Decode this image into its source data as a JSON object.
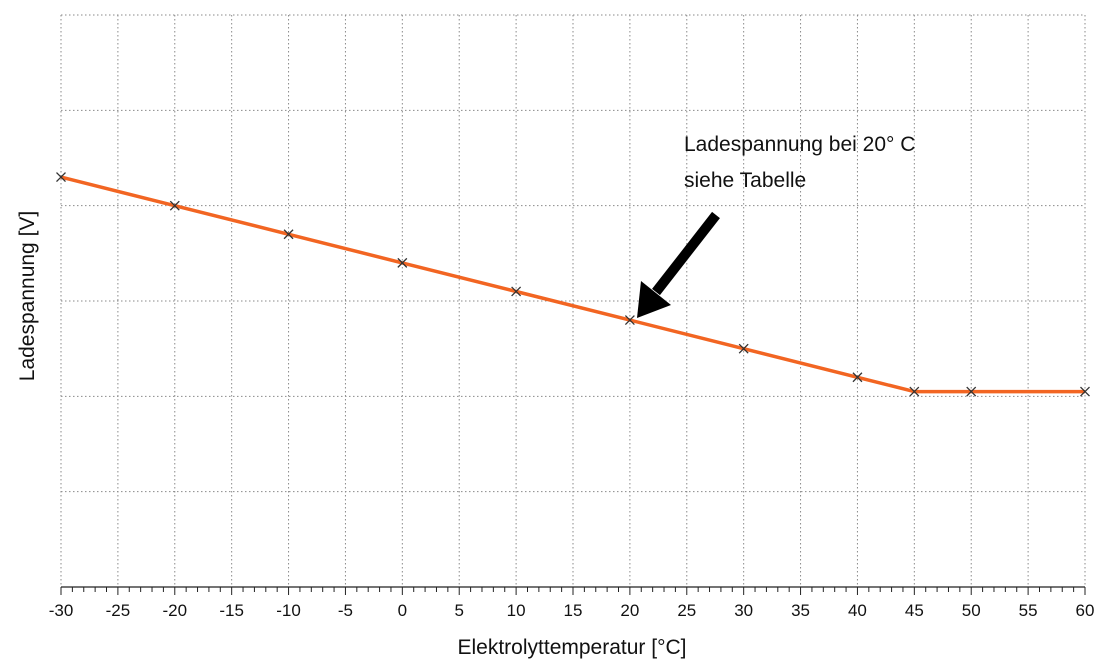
{
  "chart_data": {
    "type": "line",
    "xlabel": "Elektrolyttemperatur [°C]",
    "ylabel": "Ladespannung [V]",
    "xlim": [
      -30,
      60
    ],
    "x_ticks": [
      "-30",
      "-25",
      "-20",
      "-15",
      "-10",
      "-5",
      "0",
      "5",
      "10",
      "15",
      "20",
      "25",
      "30",
      "35",
      "40",
      "45",
      "50",
      "55",
      "60"
    ],
    "y_levels": 6,
    "ylim": [
      0,
      6
    ],
    "grid": true,
    "grid_style": "dotted",
    "series": [
      {
        "color": "#f26522",
        "marker": "x",
        "x": [
          -30,
          -20,
          -10,
          0,
          10,
          20,
          30,
          40,
          45,
          50,
          60
        ],
        "y": [
          4.3,
          4.0,
          3.7,
          3.4,
          3.1,
          2.8,
          2.5,
          2.2,
          2.05,
          2.05,
          2.05
        ]
      }
    ],
    "annotations": [
      {
        "lines": [
          "Ladespannung bei 20° C",
          "siehe Tabelle"
        ],
        "points_to_x": 20
      }
    ]
  }
}
